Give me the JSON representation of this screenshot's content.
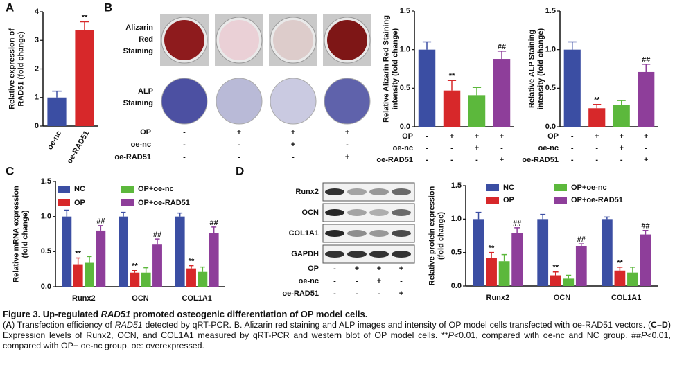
{
  "panels": {
    "a": "A",
    "b": "B",
    "c": "C",
    "d": "D"
  },
  "panel_b_images": {
    "alizarin_label": [
      "Alizarin",
      "Red",
      "Staining"
    ],
    "alp_label": [
      "ALP",
      "Staining"
    ],
    "conditions": [
      {
        "name": "OP",
        "values": [
          "-",
          "+",
          "+",
          "+"
        ]
      },
      {
        "name": "oe-nc",
        "values": [
          "-",
          "-",
          "+",
          "-"
        ]
      },
      {
        "name": "oe-RAD51",
        "values": [
          "-",
          "-",
          "-",
          "+"
        ]
      }
    ]
  },
  "panel_d_blot": {
    "bands": [
      "Runx2",
      "OCN",
      "COL1A1",
      "GAPDH"
    ],
    "conditions": [
      {
        "name": "OP",
        "values": [
          "-",
          "+",
          "+",
          "+"
        ]
      },
      {
        "name": "oe-nc",
        "values": [
          "-",
          "-",
          "+",
          "-"
        ]
      },
      {
        "name": "oe-RAD51",
        "values": [
          "-",
          "-",
          "-",
          "+"
        ]
      }
    ]
  },
  "chart_data": [
    {
      "type": "bar",
      "ylabel": [
        "Relative expression of",
        "RAD51 (fold change)"
      ],
      "categories": [
        "oe-nc",
        "oe-RAD51"
      ],
      "values": [
        1.0,
        3.35
      ],
      "errors": [
        0.22,
        0.3
      ],
      "colors": [
        "#3b4ea3",
        "#d7282a"
      ],
      "annotations": [
        null,
        "**"
      ],
      "ylim": [
        0,
        4
      ],
      "yticks": [
        0,
        1,
        2,
        3,
        4
      ]
    },
    {
      "type": "bar",
      "ylabel": [
        "Relative Alizarin Red Staining",
        "intensity (fold change)"
      ],
      "values": [
        1.0,
        0.47,
        0.41,
        0.88
      ],
      "errors": [
        0.1,
        0.13,
        0.1,
        0.1
      ],
      "colors": [
        "#3b4ea3",
        "#d7282a",
        "#5cb83c",
        "#8e3e9a"
      ],
      "annotations": [
        null,
        "**",
        null,
        "##"
      ],
      "ylim": [
        0,
        1.5
      ],
      "yticks": [
        {
          "value": 0,
          "label": "0.0"
        },
        {
          "value": 0.5,
          "label": "0.5"
        },
        {
          "value": 1,
          "label": "1.0"
        },
        {
          "value": 1.5,
          "label": "1.5"
        }
      ],
      "conditions": [
        {
          "name": "OP",
          "values": [
            "-",
            "+",
            "+",
            "+"
          ]
        },
        {
          "name": "oe-nc",
          "values": [
            "-",
            "-",
            "+",
            "-"
          ]
        },
        {
          "name": "oe-RAD51",
          "values": [
            "-",
            "-",
            "-",
            "+"
          ]
        }
      ]
    },
    {
      "type": "bar",
      "ylabel": [
        "Relative ALP Staining",
        "intensity (fold change)"
      ],
      "values": [
        1.0,
        0.24,
        0.28,
        0.71
      ],
      "errors": [
        0.1,
        0.05,
        0.06,
        0.1
      ],
      "colors": [
        "#3b4ea3",
        "#d7282a",
        "#5cb83c",
        "#8e3e9a"
      ],
      "annotations": [
        null,
        "**",
        null,
        "##"
      ],
      "ylim": [
        0,
        1.5
      ],
      "yticks": [
        {
          "value": 0,
          "label": "0.0"
        },
        {
          "value": 0.5,
          "label": "0.5"
        },
        {
          "value": 1,
          "label": "1.0"
        },
        {
          "value": 1.5,
          "label": "1.5"
        }
      ],
      "conditions": [
        {
          "name": "OP",
          "values": [
            "-",
            "+",
            "+",
            "+"
          ]
        },
        {
          "name": "oe-nc",
          "values": [
            "-",
            "-",
            "+",
            "-"
          ]
        },
        {
          "name": "oe-RAD51",
          "values": [
            "-",
            "-",
            "-",
            "+"
          ]
        }
      ]
    },
    {
      "type": "grouped_bar",
      "ylabel": [
        "Relative mRNA expression",
        "(fold change)"
      ],
      "categories": [
        "Runx2",
        "OCN",
        "COL1A1"
      ],
      "series": [
        {
          "name": "NC",
          "color": "#3b4ea3",
          "values": [
            1.0,
            1.0,
            1.0
          ],
          "errors": [
            0.09,
            0.06,
            0.05
          ],
          "annotations": [
            null,
            null,
            null
          ]
        },
        {
          "name": "OP",
          "color": "#d7282a",
          "values": [
            0.32,
            0.2,
            0.26
          ],
          "errors": [
            0.09,
            0.03,
            0.04
          ],
          "annotations": [
            "**",
            "**",
            "**"
          ]
        },
        {
          "name": "OP+oe-nc",
          "color": "#5cb83c",
          "values": [
            0.34,
            0.2,
            0.21
          ],
          "errors": [
            0.09,
            0.07,
            0.07
          ],
          "annotations": [
            null,
            null,
            null
          ]
        },
        {
          "name": "OP+oe-RAD51",
          "color": "#8e3e9a",
          "values": [
            0.8,
            0.6,
            0.76
          ],
          "errors": [
            0.07,
            0.08,
            0.09
          ],
          "annotations": [
            "##",
            "##",
            "##"
          ]
        }
      ],
      "ylim": [
        0,
        1.5
      ],
      "yticks": [
        {
          "value": 0,
          "label": "0.0"
        },
        {
          "value": 0.5,
          "label": "0.5"
        },
        {
          "value": 1,
          "label": "1.0"
        },
        {
          "value": 1.5,
          "label": "1.5"
        }
      ]
    },
    {
      "type": "grouped_bar",
      "ylabel": [
        "Relative protein expression",
        "(fold change)"
      ],
      "categories": [
        "Runx2",
        "OCN",
        "COL1A1"
      ],
      "series": [
        {
          "name": "NC",
          "color": "#3b4ea3",
          "values": [
            1.0,
            1.0,
            1.0
          ],
          "errors": [
            0.1,
            0.07,
            0.03
          ],
          "annotations": [
            null,
            null,
            null
          ]
        },
        {
          "name": "OP",
          "color": "#d7282a",
          "values": [
            0.42,
            0.16,
            0.23
          ],
          "errors": [
            0.08,
            0.05,
            0.05
          ],
          "annotations": [
            "**",
            "**",
            "**"
          ]
        },
        {
          "name": "OP+oe-nc",
          "color": "#5cb83c",
          "values": [
            0.37,
            0.11,
            0.2
          ],
          "errors": [
            0.1,
            0.05,
            0.08
          ],
          "annotations": [
            null,
            null,
            null
          ]
        },
        {
          "name": "OP+oe-RAD51",
          "color": "#8e3e9a",
          "values": [
            0.79,
            0.6,
            0.77
          ],
          "errors": [
            0.08,
            0.03,
            0.06
          ],
          "annotations": [
            "##",
            "##",
            "##"
          ]
        }
      ],
      "ylim": [
        0,
        1.5
      ],
      "yticks": [
        {
          "value": 0,
          "label": "0.0"
        },
        {
          "value": 0.5,
          "label": "0.5"
        },
        {
          "value": 1,
          "label": "1.0"
        },
        {
          "value": 1.5,
          "label": "1.5"
        }
      ]
    }
  ],
  "caption": {
    "title": [
      "Figure 3. Up-regulated ",
      "RAD51",
      " promoted osteogenic differentiation of OP model cells."
    ],
    "body": [
      "(",
      "A",
      ") Transfection efficiency of ",
      "RAD51",
      " detected by qRT-PCR. B. Alizarin red staining and ALP images and intensity of OP model cells transfected with oe-RAD51 vectors. (",
      "C–D",
      ") Expression levels of Runx2, OCN, and COL1A1 measured by qRT-PCR and western blot of OP model cells. **",
      "P",
      "<0.01, compared with oe-nc and NC group. ##",
      "P",
      "<0.01, compared with OP+ oe-nc group. oe: overexpressed."
    ]
  }
}
